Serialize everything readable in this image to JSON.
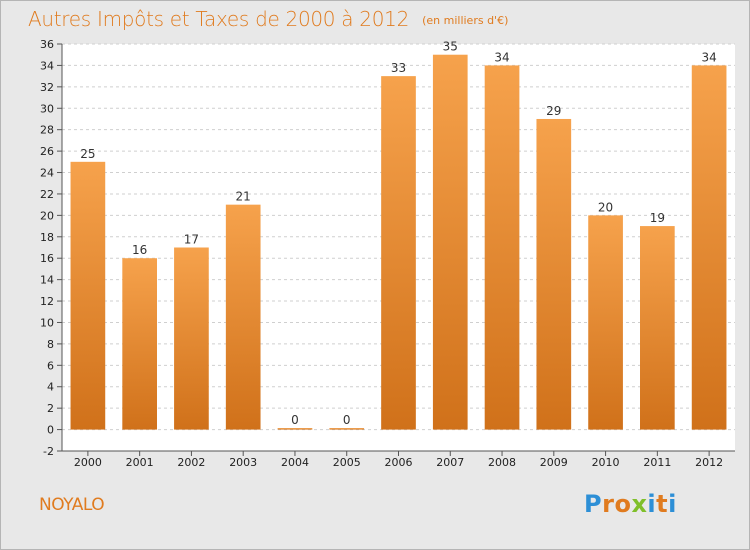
{
  "header": {
    "title": "Autres Impôts et Taxes de 2000 à 2012",
    "subtitle": "(en milliers d'€)"
  },
  "footer": {
    "town": "NOYALO",
    "brand_letters": [
      "P",
      "r",
      "o",
      "x",
      "i",
      "t",
      "i"
    ],
    "brand_colors": [
      "#2d8fd6",
      "#e07b1f",
      "#e07b1f",
      "#7fbf2a",
      "#2d8fd6",
      "#e07b1f",
      "#2d8fd6"
    ]
  },
  "chart_data": {
    "type": "bar",
    "categories": [
      "2000",
      "2001",
      "2002",
      "2003",
      "2004",
      "2005",
      "2006",
      "2007",
      "2008",
      "2009",
      "2010",
      "2011",
      "2012"
    ],
    "values": [
      25,
      16,
      17,
      21,
      0,
      0,
      33,
      35,
      34,
      29,
      20,
      19,
      34
    ],
    "data_labels": [
      "25",
      "16",
      "17",
      "21",
      "0",
      "0",
      "33",
      "35",
      "34",
      "29",
      "20",
      "19",
      "34"
    ],
    "ylim": [
      -2,
      36
    ],
    "yticks": [
      -2,
      0,
      2,
      4,
      6,
      8,
      10,
      12,
      14,
      16,
      18,
      20,
      22,
      24,
      26,
      28,
      30,
      32,
      34,
      36
    ],
    "xlabel": "",
    "ylabel": "",
    "grid": true,
    "colors": {
      "bar_top": "#f6a24c",
      "bar_bottom": "#d0711a",
      "background": "#ffffff",
      "grid": "#cfcfcf"
    }
  }
}
